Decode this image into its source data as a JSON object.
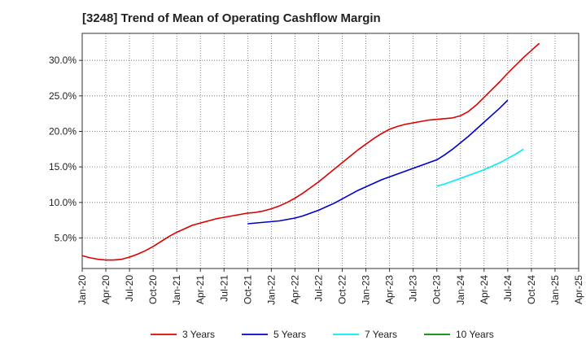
{
  "chart_data": {
    "type": "line",
    "title": "[3248]  Trend of Mean of Operating Cashflow Margin",
    "xlabel": "",
    "ylabel": "",
    "x_ticks": [
      "Jan-20",
      "Apr-20",
      "Jul-20",
      "Oct-20",
      "Jan-21",
      "Apr-21",
      "Jul-21",
      "Oct-21",
      "Jan-22",
      "Apr-22",
      "Jul-22",
      "Oct-22",
      "Jan-23",
      "Apr-23",
      "Jul-23",
      "Oct-23",
      "Jan-24",
      "Apr-24",
      "Jul-24",
      "Oct-24",
      "Jan-25",
      "Apr-25"
    ],
    "y_ticks": [
      5,
      10,
      15,
      20,
      25,
      30
    ],
    "y_tick_labels": [
      "5.0%",
      "10.0%",
      "15.0%",
      "20.0%",
      "25.0%",
      "30.0%"
    ],
    "ylim": [
      0.7,
      33.8
    ],
    "grid": true,
    "legend_position": "bottom",
    "series": [
      {
        "name": "3 Years",
        "color": "#dd0000",
        "start_month": 0,
        "values": [
          2.5,
          2.2,
          2.0,
          1.9,
          1.9,
          2.0,
          2.3,
          2.7,
          3.2,
          3.8,
          4.5,
          5.2,
          5.8,
          6.3,
          6.8,
          7.1,
          7.4,
          7.7,
          7.9,
          8.1,
          8.3,
          8.5,
          8.6,
          8.8,
          9.1,
          9.5,
          10.0,
          10.6,
          11.3,
          12.1,
          12.9,
          13.8,
          14.7,
          15.6,
          16.5,
          17.4,
          18.2,
          19.0,
          19.7,
          20.3,
          20.7,
          21.0,
          21.2,
          21.4,
          21.6,
          21.7,
          21.8,
          21.9,
          22.2,
          22.8,
          23.7,
          24.8,
          25.9,
          27.0,
          28.2,
          29.3,
          30.4,
          31.4,
          32.4
        ]
      },
      {
        "name": "5 Years",
        "color": "#0000cc",
        "start_month": 21,
        "values": [
          7.0,
          7.1,
          7.2,
          7.3,
          7.4,
          7.6,
          7.8,
          8.1,
          8.5,
          8.9,
          9.4,
          9.9,
          10.5,
          11.1,
          11.7,
          12.2,
          12.7,
          13.2,
          13.6,
          14.0,
          14.4,
          14.8,
          15.2,
          15.6,
          16.0,
          16.7,
          17.5,
          18.4,
          19.3,
          20.3,
          21.3,
          22.3,
          23.3,
          24.4
        ]
      },
      {
        "name": "7 Years",
        "color": "#00eeee",
        "start_month": 45,
        "values": [
          12.3,
          12.6,
          13.0,
          13.4,
          13.8,
          14.2,
          14.6,
          15.1,
          15.6,
          16.2,
          16.8,
          17.5
        ]
      },
      {
        "name": "10 Years",
        "color": "#008800",
        "start_month": 0,
        "values": []
      }
    ]
  }
}
